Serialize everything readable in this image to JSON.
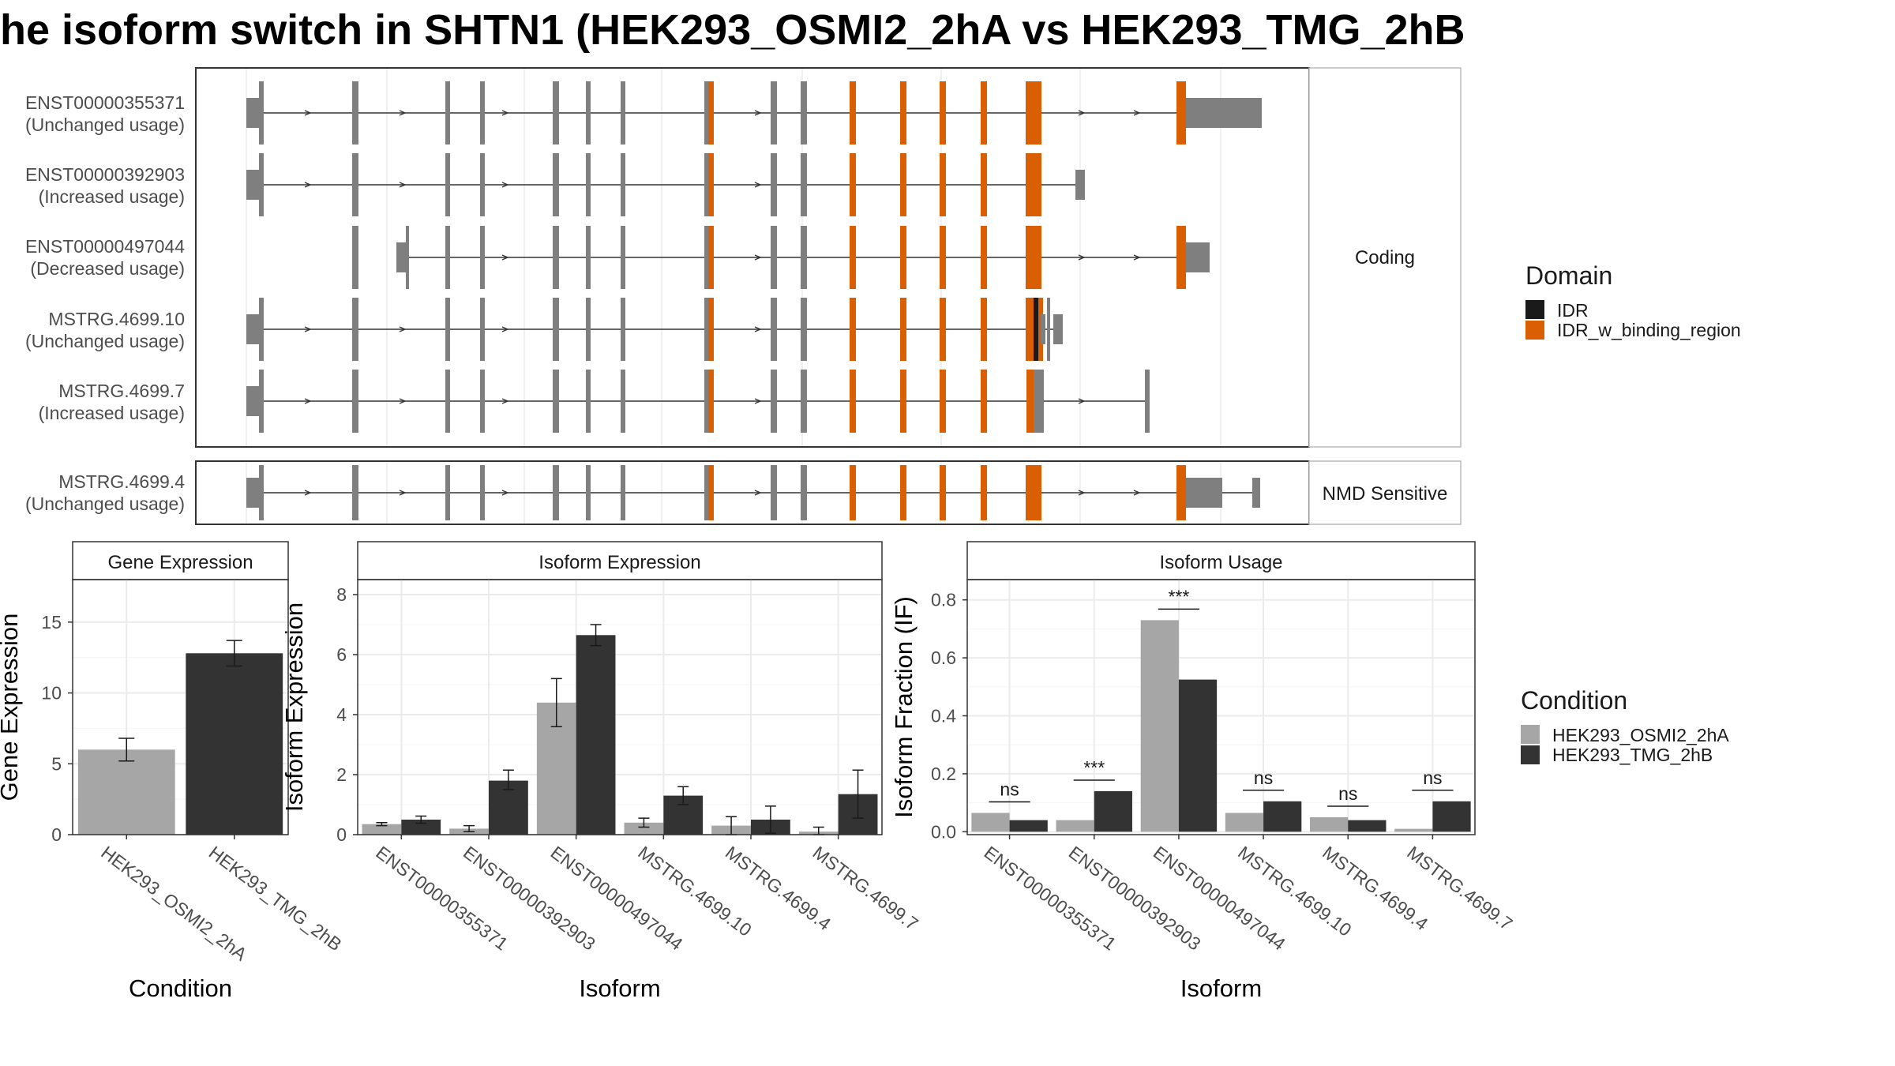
{
  "title": "he isoform switch in SHTN1 (HEK293_OSMI2_2hA vs HEK293_TMG_2hB",
  "colors": {
    "idr": "#1a1a1a",
    "idr_w_binding_region": "#d95f02",
    "exon_grey": "#7f7f7f",
    "cond1": "#a6a6a6",
    "cond2": "#333333",
    "grid": "#ebebeb"
  },
  "transcript_panel": {
    "strips": [
      "Coding",
      "NMD Sensitive"
    ],
    "coding_tracks": [
      {
        "id": "ENST00000355371",
        "label": "(Unchanged usage)"
      },
      {
        "id": "ENST00000392903",
        "label": "(Increased usage)"
      },
      {
        "id": "ENST00000497044",
        "label": "(Decreased usage)"
      },
      {
        "id": "MSTRG.4699.10",
        "label": "(Unchanged usage)"
      },
      {
        "id": "MSTRG.4699.7",
        "label": "(Increased usage)"
      }
    ],
    "nmd_tracks": [
      {
        "id": "MSTRG.4699.4",
        "label": "(Unchanged usage)"
      }
    ]
  },
  "legends": {
    "domain": {
      "title": "Domain",
      "items": [
        "IDR",
        "IDR_w_binding_region"
      ]
    },
    "condition": {
      "title": "Condition",
      "items": [
        "HEK293_OSMI2_2hA",
        "HEK293_TMG_2hB"
      ]
    }
  },
  "chart_data": [
    {
      "type": "bar",
      "title": "Gene Expression",
      "xlabel": "Condition",
      "ylabel": "Gene Expression",
      "categories": [
        "HEK293_OSMI2_2hA",
        "HEK293_TMG_2hB"
      ],
      "values": [
        6.0,
        12.8
      ],
      "errors": [
        [
          5.2,
          6.8
        ],
        [
          11.9,
          13.7
        ]
      ],
      "ylim": [
        0,
        18
      ],
      "yticks": [
        0,
        5,
        10,
        15
      ]
    },
    {
      "type": "bar",
      "title": "Isoform Expression",
      "xlabel": "Isoform",
      "ylabel": "Isoform Expression",
      "categories": [
        "ENST00000355371",
        "ENST00000392903",
        "ENST00000497044",
        "MSTRG.4699.10",
        "MSTRG.4699.4",
        "MSTRG.4699.7"
      ],
      "series": [
        {
          "name": "HEK293_OSMI2_2hA",
          "values": [
            0.35,
            0.2,
            4.4,
            0.4,
            0.3,
            0.1
          ],
          "errors": [
            [
              0.3,
              0.4
            ],
            [
              0.1,
              0.3
            ],
            [
              3.6,
              5.2
            ],
            [
              0.25,
              0.55
            ],
            [
              0.0,
              0.6
            ],
            [
              0.0,
              0.25
            ]
          ]
        },
        {
          "name": "HEK293_TMG_2hB",
          "values": [
            0.5,
            1.8,
            6.65,
            1.3,
            0.5,
            1.35
          ],
          "errors": [
            [
              0.38,
              0.62
            ],
            [
              1.5,
              2.15
            ],
            [
              6.3,
              7.0
            ],
            [
              1.0,
              1.6
            ],
            [
              0.05,
              0.95
            ],
            [
              0.55,
              2.15
            ]
          ]
        }
      ],
      "ylim": [
        0,
        8.5
      ],
      "yticks": [
        0,
        2,
        4,
        6,
        8
      ]
    },
    {
      "type": "bar",
      "title": "Isoform Usage",
      "xlabel": "Isoform",
      "ylabel": "Isoform Fraction (IF)",
      "categories": [
        "ENST00000355371",
        "ENST00000392903",
        "ENST00000497044",
        "MSTRG.4699.10",
        "MSTRG.4699.4",
        "MSTRG.4699.7"
      ],
      "series": [
        {
          "name": "HEK293_OSMI2_2hA",
          "values": [
            0.065,
            0.04,
            0.73,
            0.065,
            0.05,
            0.01
          ]
        },
        {
          "name": "HEK293_TMG_2hB",
          "values": [
            0.04,
            0.14,
            0.525,
            0.105,
            0.04,
            0.105
          ]
        }
      ],
      "significance": [
        "ns",
        "***",
        "***",
        "ns",
        "ns",
        "ns"
      ],
      "ylim": [
        -0.01,
        0.87
      ],
      "yticks": [
        0.0,
        0.2,
        0.4,
        0.6,
        0.8
      ]
    }
  ]
}
